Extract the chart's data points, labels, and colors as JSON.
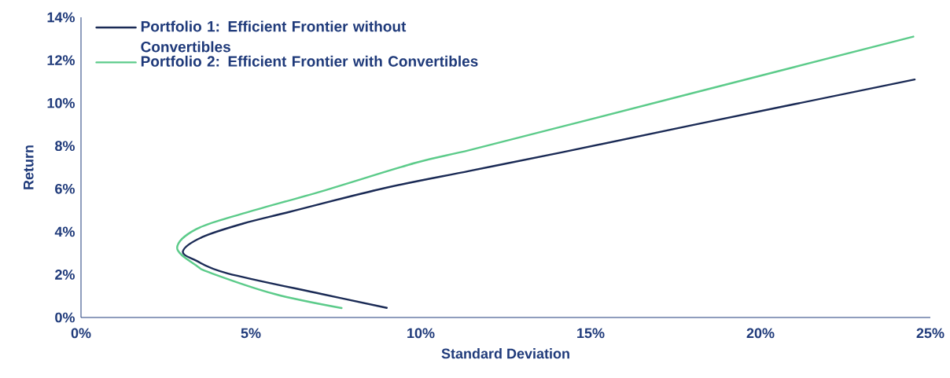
{
  "chart_data": {
    "type": "line",
    "xlabel": "Standard Deviation",
    "ylabel": "Return",
    "xlim": [
      0,
      25
    ],
    "ylim": [
      0,
      14
    ],
    "xticks": [
      {
        "value": 0,
        "label": "0%"
      },
      {
        "value": 5,
        "label": "5%"
      },
      {
        "value": 10,
        "label": "10%"
      },
      {
        "value": 15,
        "label": "15%"
      },
      {
        "value": 20,
        "label": "20%"
      },
      {
        "value": 25,
        "label": "25%"
      }
    ],
    "yticks": [
      {
        "value": 0,
        "label": "0%"
      },
      {
        "value": 2,
        "label": "2%"
      },
      {
        "value": 4,
        "label": "4%"
      },
      {
        "value": 6,
        "label": "6%"
      },
      {
        "value": 8,
        "label": "8%"
      },
      {
        "value": 10,
        "label": "10%"
      },
      {
        "value": 12,
        "label": "12%"
      },
      {
        "value": 14,
        "label": "14%"
      }
    ],
    "grid": false,
    "legend": "top left",
    "marker": "none",
    "line_style": "solid",
    "series": [
      {
        "name": "Portfolio 1: Efficient Frontier without Convertibles",
        "color": "#1a2a55",
        "x": [
          9.0,
          7.07,
          4.31,
          3.39,
          3.0,
          3.57,
          4.77,
          6.15,
          8.92,
          11.45,
          14.15,
          18.09,
          24.54
        ],
        "values": [
          0.45,
          1.1,
          2.06,
          2.65,
          3.09,
          3.75,
          4.38,
          4.93,
          6.03,
          6.84,
          7.7,
          9.0,
          11.1
        ]
      },
      {
        "name": "Portfolio 2: Efficient Frontier with Convertibles",
        "color": "#5ccb8a",
        "x": [
          7.67,
          5.69,
          3.85,
          3.39,
          2.83,
          3.39,
          4.77,
          7.07,
          9.84,
          11.45,
          14.15,
          18.09,
          24.5
        ],
        "values": [
          0.44,
          1.1,
          2.06,
          2.43,
          3.24,
          4.12,
          4.85,
          5.88,
          7.21,
          7.81,
          8.9,
          10.5,
          13.1
        ]
      }
    ]
  }
}
